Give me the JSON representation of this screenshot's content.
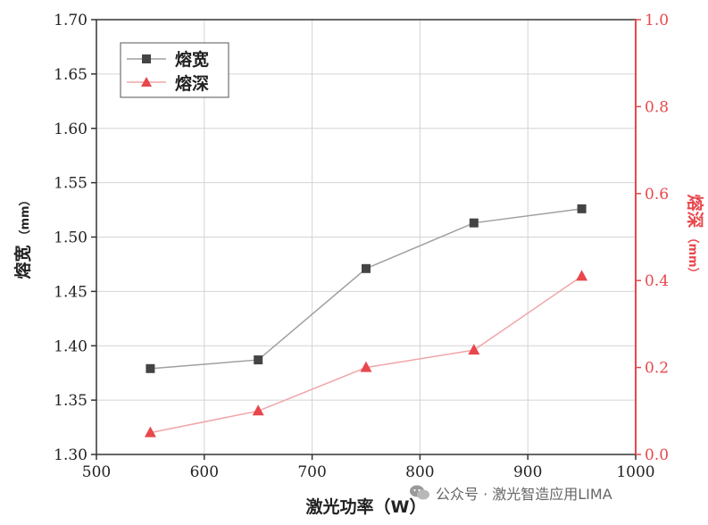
{
  "chart_data": {
    "type": "line",
    "title": "",
    "xlabel": "激光功率（W）",
    "xlim": [
      500,
      1000
    ],
    "xticks": [
      "500",
      "600",
      "700",
      "800",
      "900",
      "1000"
    ],
    "y_left": {
      "label": "熔宽",
      "unit": "（mm）",
      "lim": [
        1.3,
        1.7
      ],
      "ticks": [
        "1.30",
        "1.35",
        "1.40",
        "1.45",
        "1.50",
        "1.55",
        "1.60",
        "1.65",
        "1.70"
      ]
    },
    "y_right": {
      "label": "熔深",
      "unit": "（mm）",
      "lim": [
        0.0,
        1.0
      ],
      "ticks": [
        "0.0",
        "0.2",
        "0.4",
        "0.6",
        "0.8",
        "1.0"
      ],
      "color": "#e8474c"
    },
    "x": [
      550,
      650,
      750,
      850,
      950
    ],
    "series": [
      {
        "name": "熔宽",
        "axis": "left",
        "marker": "square",
        "color": "#444444",
        "line_color": "#a0a0a0",
        "values": [
          1.379,
          1.387,
          1.471,
          1.513,
          1.526
        ]
      },
      {
        "name": "熔深",
        "axis": "right",
        "marker": "triangle",
        "color": "#e8474c",
        "line_color": "#f0a5a8",
        "values": [
          0.05,
          0.1,
          0.2,
          0.24,
          0.41
        ]
      }
    ],
    "grid": true,
    "legend_position": "top-left"
  },
  "watermark": {
    "text": "公众号 · 激光智造应用LIMA",
    "icon": "wechat-icon"
  }
}
